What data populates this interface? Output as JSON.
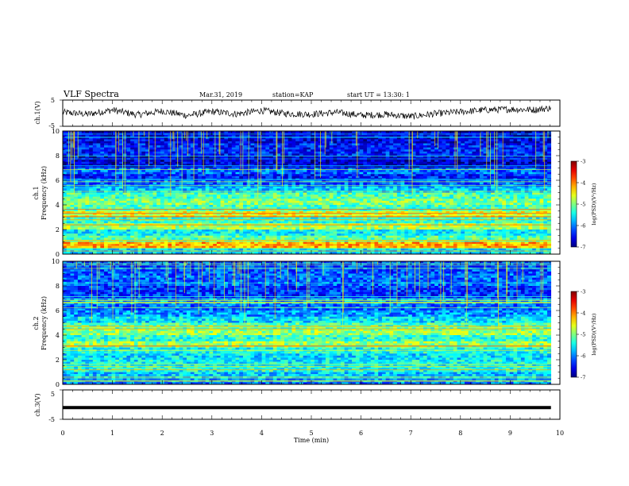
{
  "header": {
    "title": "VLF Spectra",
    "date": "Mar.31, 2019",
    "station": "station=KAP",
    "start": "start UT =  13:30: 1"
  },
  "chart_data": [
    {
      "type": "line",
      "id": "ch1",
      "ylabel": "ch.1(V)",
      "ylim": [
        -5,
        5
      ],
      "yticks": [
        "-5",
        "5"
      ],
      "xlim": [
        0,
        10
      ],
      "data_extent_min": 9.82,
      "description": "noisy waveform near 0 V",
      "mean_trend": [
        [
          0.0,
          0.3
        ],
        [
          0.5,
          -0.4
        ],
        [
          1.0,
          1.2
        ],
        [
          1.5,
          -0.6
        ],
        [
          2.0,
          0.8
        ],
        [
          2.5,
          -0.9
        ],
        [
          3.0,
          0.6
        ],
        [
          3.5,
          -0.3
        ],
        [
          4.0,
          1.0
        ],
        [
          4.5,
          -0.2
        ],
        [
          5.0,
          -0.4
        ],
        [
          5.5,
          0.3
        ],
        [
          6.0,
          -0.8
        ],
        [
          6.5,
          -0.5
        ],
        [
          7.0,
          -1.3
        ],
        [
          7.5,
          -0.2
        ],
        [
          8.0,
          0.5
        ],
        [
          8.5,
          1.2
        ],
        [
          9.0,
          1.5
        ],
        [
          9.5,
          1.3
        ],
        [
          9.82,
          2.0
        ]
      ]
    },
    {
      "type": "heatmap",
      "id": "ch1-spectrogram",
      "ylabel_top": "ch.1",
      "ylabel": "Frequency (kHz)",
      "xlim": [
        0,
        10
      ],
      "ylim": [
        0,
        10
      ],
      "yticks": [
        "0",
        "2",
        "4",
        "6",
        "8",
        "10"
      ],
      "data_extent_min": 9.82,
      "colorbar": {
        "label": "log(PSD)(V²/Hz)",
        "range": [
          -7,
          -3
        ],
        "ticks": [
          "-3",
          "-4",
          "-5",
          "-6",
          "-7"
        ]
      },
      "bands_khz_log_psd": [
        [
          [
            0.0,
            0.5
          ],
          -5.6
        ],
        [
          [
            0.5,
            1.0
          ],
          -4.2
        ],
        [
          [
            1.0,
            1.5
          ],
          -5.2
        ],
        [
          [
            1.5,
            2.0
          ],
          -5.5
        ],
        [
          [
            2.0,
            2.5
          ],
          -4.8
        ],
        [
          [
            2.5,
            3.0
          ],
          -5.3
        ],
        [
          [
            3.0,
            3.5
          ],
          -4.6
        ],
        [
          [
            3.5,
            4.0
          ],
          -5.2
        ],
        [
          [
            4.0,
            4.5
          ],
          -5.0
        ],
        [
          [
            4.5,
            5.0
          ],
          -5.2
        ],
        [
          [
            5.0,
            5.5
          ],
          -5.7
        ],
        [
          [
            5.5,
            6.0
          ],
          -6.1
        ],
        [
          [
            6.0,
            6.5
          ],
          -6.4
        ],
        [
          [
            6.5,
            7.0
          ],
          -6.1
        ],
        [
          [
            7.0,
            8.0
          ],
          -6.7
        ],
        [
          [
            8.0,
            9.0
          ],
          -6.4
        ],
        [
          [
            9.0,
            10.0
          ],
          -6.6
        ]
      ]
    },
    {
      "type": "heatmap",
      "id": "ch2-spectrogram",
      "ylabel_top": "ch.2",
      "ylabel": "Frequency (kHz)",
      "xlim": [
        0,
        10
      ],
      "ylim": [
        0,
        10
      ],
      "yticks": [
        "0",
        "2",
        "4",
        "6",
        "8",
        "10"
      ],
      "data_extent_min": 9.82,
      "colorbar": {
        "label": "log(PSD)(V²/Hz)",
        "range": [
          -7,
          -3
        ],
        "ticks": [
          "-3",
          "-4",
          "-5",
          "-6",
          "-7"
        ]
      },
      "bands_khz_log_psd": [
        [
          [
            0.0,
            0.5
          ],
          -6.0
        ],
        [
          [
            0.5,
            1.0
          ],
          -5.7
        ],
        [
          [
            1.0,
            1.5
          ],
          -5.4
        ],
        [
          [
            1.5,
            2.0
          ],
          -5.5
        ],
        [
          [
            2.0,
            2.5
          ],
          -5.6
        ],
        [
          [
            2.5,
            3.0
          ],
          -5.4
        ],
        [
          [
            3.0,
            3.5
          ],
          -4.9
        ],
        [
          [
            3.5,
            4.0
          ],
          -5.3
        ],
        [
          [
            4.0,
            4.5
          ],
          -4.9
        ],
        [
          [
            4.5,
            5.0
          ],
          -5.2
        ],
        [
          [
            5.0,
            5.5
          ],
          -5.6
        ],
        [
          [
            5.5,
            6.0
          ],
          -5.9
        ],
        [
          [
            6.0,
            6.5
          ],
          -6.1
        ],
        [
          [
            6.5,
            7.0
          ],
          -5.9
        ],
        [
          [
            7.0,
            8.0
          ],
          -6.3
        ],
        [
          [
            8.0,
            9.0
          ],
          -6.1
        ],
        [
          [
            9.0,
            10.0
          ],
          -6.2
        ]
      ]
    },
    {
      "type": "line",
      "id": "ch3",
      "ylabel": "ch.3(V)",
      "ylim": [
        -5,
        5
      ],
      "yticks": [
        "-5",
        "5"
      ],
      "xlim": [
        0,
        10
      ],
      "xticks": [
        "0",
        "1",
        "2",
        "3",
        "4",
        "5",
        "6",
        "7",
        "8",
        "9",
        "10"
      ],
      "xlabel": "Time (min)",
      "data_extent_min": 9.82,
      "constant_value": -1
    }
  ]
}
